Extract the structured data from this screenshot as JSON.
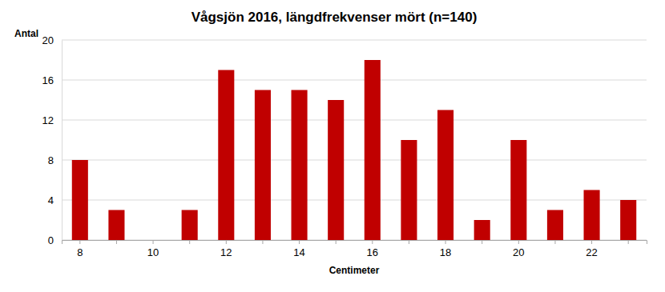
{
  "chart_data": {
    "type": "bar",
    "title": "Vågsjön 2016, längdfrekvenser mört (n=140)",
    "x_label": "Centimeter",
    "y_label": "Antal",
    "categories": [
      8,
      null,
      10,
      null,
      12,
      null,
      14,
      null,
      16,
      null,
      18,
      null,
      20,
      null,
      22,
      null
    ],
    "values": [
      8,
      3,
      0,
      3,
      17,
      15,
      15,
      14,
      18,
      10,
      13,
      2,
      10,
      3,
      5,
      4
    ],
    "color": "#c00000",
    "ylim": [
      0,
      20
    ],
    "yticks": [
      0,
      4,
      8,
      12,
      16,
      20
    ],
    "grid": true
  }
}
